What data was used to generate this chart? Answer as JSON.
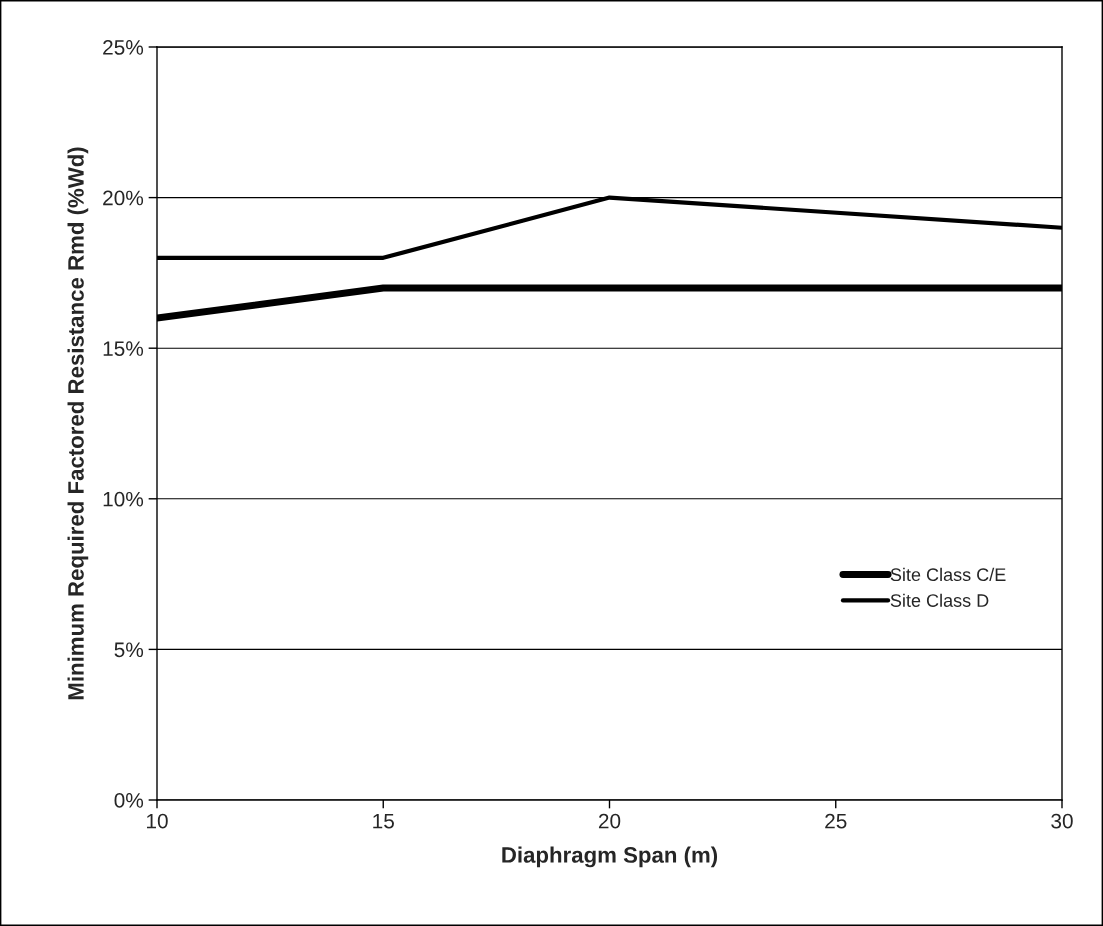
{
  "chart_data": {
    "type": "line",
    "xlabel": "Diaphragm Span (m)",
    "ylabel": "Minimum Required Factored Resistance Rmd (%Wd)",
    "x": [
      10,
      15,
      20,
      30
    ],
    "series": [
      {
        "name": "Site Class C/E",
        "color": "#000000",
        "values": [
          16,
          17,
          17,
          17
        ]
      },
      {
        "name": "Site Class D",
        "color": "#000000",
        "values": [
          18,
          18,
          20,
          19
        ]
      }
    ],
    "xlim": [
      10,
      30
    ],
    "xticks": [
      10,
      15,
      20,
      25,
      30
    ],
    "ylim": [
      0,
      25
    ],
    "yticks": [
      {
        "value": 0,
        "label": "0%"
      },
      {
        "value": 5,
        "label": "5%"
      },
      {
        "value": 10,
        "label": "10%"
      },
      {
        "value": 15,
        "label": "15%"
      },
      {
        "value": 20,
        "label": "20%"
      },
      {
        "value": 25,
        "label": "25%"
      }
    ],
    "grid": "y",
    "legend": "right",
    "marker": "none",
    "line_style": "solid"
  }
}
